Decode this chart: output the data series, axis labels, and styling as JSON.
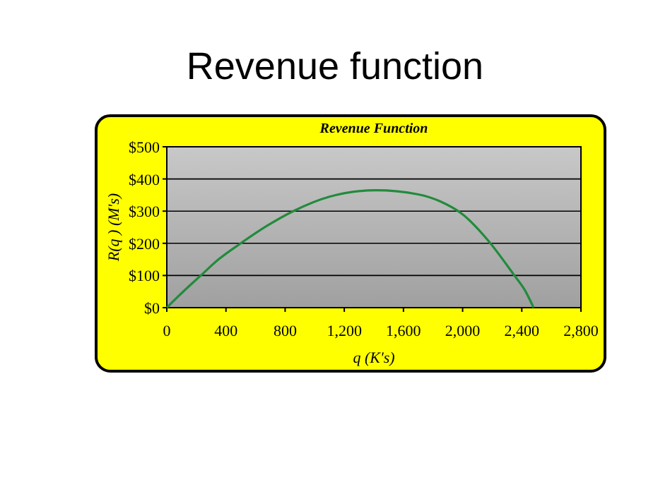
{
  "chart_data": {
    "type": "line",
    "title": "Revenue function",
    "subtitle": "Revenue Function",
    "xlabel": "q (K's)",
    "ylabel": "R(q ) (M's)",
    "x": [
      0,
      100,
      230,
      350,
      500,
      680,
      855,
      1100,
      1415,
      1700,
      1850,
      2000,
      2170,
      2350,
      2420,
      2480
    ],
    "series": [
      {
        "color": "#228b3c",
        "values": [
          0,
          45,
          100,
          150,
          200,
          255,
          300,
          345,
          365,
          352,
          330,
          290,
          210,
          100,
          55,
          0
        ]
      }
    ],
    "xlim": [
      0,
      2800
    ],
    "xticks": [
      0,
      400,
      800,
      {
        "value": 1200,
        "label": "1,200"
      },
      {
        "value": 1600,
        "label": "1,600"
      },
      {
        "value": 2000,
        "label": "2,000"
      },
      {
        "value": 2400,
        "label": "2,400"
      },
      {
        "value": 2800,
        "label": "2,800"
      }
    ],
    "ylim": [
      0,
      500
    ],
    "yticks": [
      {
        "value": 0,
        "label": "$0"
      },
      {
        "value": 100,
        "label": "$100"
      },
      {
        "value": 200,
        "label": "$200"
      },
      {
        "value": 300,
        "label": "$300"
      },
      {
        "value": 400,
        "label": "$400"
      },
      {
        "value": 500,
        "label": "$500"
      }
    ],
    "grid": "y",
    "marker": "none",
    "line_style": "solid"
  }
}
